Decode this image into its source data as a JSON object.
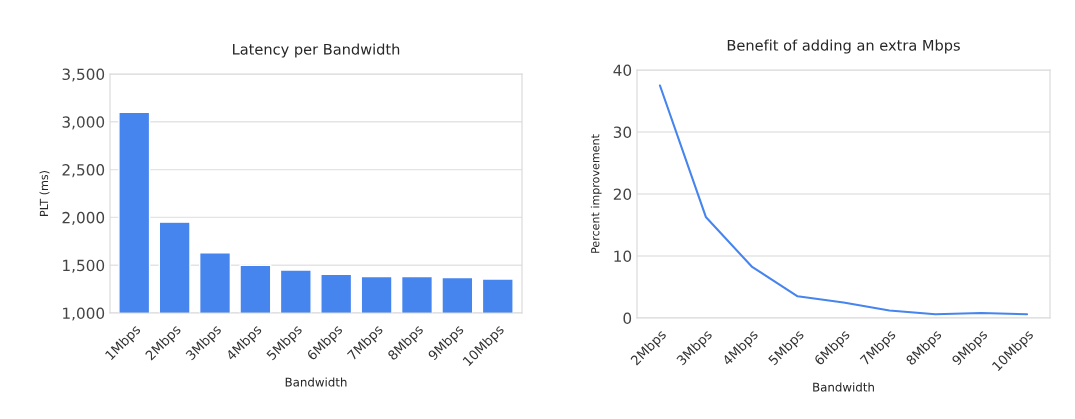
{
  "chart_data": [
    {
      "type": "bar",
      "title": "Latency per Bandwidth",
      "xlabel": "Bandwidth",
      "ylabel": "PLT (ms)",
      "categories": [
        "1Mbps",
        "2Mbps",
        "3Mbps",
        "4Mbps",
        "5Mbps",
        "6Mbps",
        "7Mbps",
        "8Mbps",
        "9Mbps",
        "10Mbps"
      ],
      "values": [
        3100,
        1950,
        1630,
        1500,
        1450,
        1405,
        1380,
        1380,
        1370,
        1355
      ],
      "color": "#4684ee",
      "ylim": [
        1000,
        3500
      ],
      "yticks": [
        {
          "value": 1000,
          "label": "1,000"
        },
        {
          "value": 1500,
          "label": "1,500"
        },
        {
          "value": 2000,
          "label": "2,000"
        },
        {
          "value": 2500,
          "label": "2,500"
        },
        {
          "value": 3000,
          "label": "3,000"
        },
        {
          "value": 3500,
          "label": "3,500"
        }
      ],
      "grid": "y"
    },
    {
      "type": "line",
      "title": "Benefit of adding an extra Mbps",
      "xlabel": "Bandwidth",
      "ylabel": "Percent improvement",
      "categories": [
        "2Mbps",
        "3Mbps",
        "4Mbps",
        "5Mbps",
        "6Mbps",
        "7Mbps",
        "8Mbps",
        "9Mbps",
        "10Mbps"
      ],
      "values": [
        37.5,
        16.3,
        8.3,
        3.5,
        2.5,
        1.2,
        0.6,
        0.8,
        0.6
      ],
      "color": "#4684ee",
      "ylim": [
        0,
        40
      ],
      "yticks": [
        0,
        10,
        20,
        30,
        40
      ],
      "grid": "y",
      "marker": "none"
    }
  ]
}
